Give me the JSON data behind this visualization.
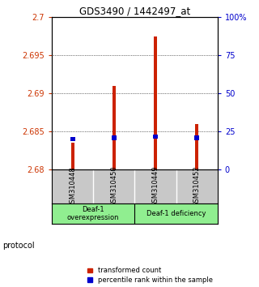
{
  "title": "GDS3490 / 1442497_at",
  "samples": [
    "GSM310448",
    "GSM310450",
    "GSM310449",
    "GSM310452"
  ],
  "red_values": [
    2.6835,
    2.691,
    2.6975,
    2.686
  ],
  "blue_values": [
    2.6837,
    2.6839,
    2.6841,
    2.6839
  ],
  "ylim_left": [
    2.68,
    2.7
  ],
  "ylim_right": [
    0,
    100
  ],
  "yticks_left": [
    2.68,
    2.685,
    2.69,
    2.695,
    2.7
  ],
  "yticks_right": [
    0,
    25,
    50,
    75,
    100
  ],
  "ytick_labels_left": [
    "2.68",
    "2.685",
    "2.69",
    "2.695",
    "2.7"
  ],
  "ytick_labels_right": [
    "0",
    "25",
    "50",
    "75",
    "100%"
  ],
  "left_tick_color": "#cc3300",
  "right_tick_color": "#0000cc",
  "bar_color_red": "#cc2200",
  "bar_color_blue": "#0000cc",
  "group1_label": "Deaf-1\noverexpression",
  "group2_label": "Deaf-1 deficiency",
  "group1_samples": [
    0,
    1
  ],
  "group2_samples": [
    2,
    3
  ],
  "group_bg_color": "#90ee90",
  "sample_bg_color": "#c8c8c8",
  "protocol_label": "protocol",
  "legend_red": "transformed count",
  "legend_blue": "percentile rank within the sample",
  "bar_width": 0.08
}
